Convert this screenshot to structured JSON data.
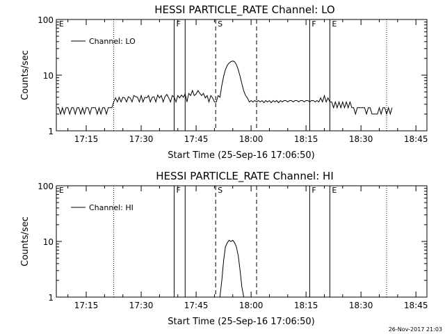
{
  "footer": {
    "timestamp": "26-Nov-2017 21:03"
  },
  "chart_data": [
    {
      "type": "line",
      "title": "HESSI PARTICLE_RATE Channel: LO",
      "xlabel": "Start Time (25-Sep-16 17:06:50)",
      "ylabel": "Counts/sec",
      "y_scale": "log",
      "ylim": [
        1,
        100
      ],
      "yticks": [
        1,
        10,
        100
      ],
      "ytick_labels": [
        "1",
        "10",
        "100"
      ],
      "xlim": [
        "17:06:50",
        "18:48:00"
      ],
      "xticks": [
        "17:15",
        "17:30",
        "17:45",
        "18:00",
        "18:15",
        "18:30",
        "18:45"
      ],
      "legend": {
        "position": "top-left",
        "entries": [
          "Channel: LO"
        ]
      },
      "grid": false,
      "markers": [
        {
          "time": "17:07",
          "style": "none",
          "label": "E"
        },
        {
          "time": "17:22:30",
          "style": "dotted",
          "label": ""
        },
        {
          "time": "17:39",
          "style": "solid",
          "label": "F"
        },
        {
          "time": "17:42",
          "style": "solid",
          "label": ""
        },
        {
          "time": "17:50:20",
          "style": "dashed",
          "label": "S"
        },
        {
          "time": "18:01:30",
          "style": "dashed",
          "label": ""
        },
        {
          "time": "18:16",
          "style": "solid",
          "label": "F"
        },
        {
          "time": "18:21:30",
          "style": "solid",
          "label": "E"
        },
        {
          "time": "18:37",
          "style": "dotted",
          "label": ""
        }
      ],
      "series": [
        {
          "name": "Channel: LO",
          "points": [
            [
              "17:07",
              2.6
            ],
            [
              "17:07:30",
              2.6
            ],
            [
              "17:08",
              2.0
            ],
            [
              "17:08:30",
              2.6
            ],
            [
              "17:09",
              2.0
            ],
            [
              "17:09:30",
              2.6
            ],
            [
              "17:10",
              2.6
            ],
            [
              "17:10:30",
              2.0
            ],
            [
              "17:11",
              2.6
            ],
            [
              "17:11:30",
              2.6
            ],
            [
              "17:12",
              2.0
            ],
            [
              "17:12:30",
              2.6
            ],
            [
              "17:13",
              2.6
            ],
            [
              "17:13:30",
              2.0
            ],
            [
              "17:14",
              2.6
            ],
            [
              "17:14:30",
              2.0
            ],
            [
              "17:15",
              2.6
            ],
            [
              "17:15:30",
              2.6
            ],
            [
              "17:16",
              2.0
            ],
            [
              "17:16:30",
              2.6
            ],
            [
              "17:17",
              2.6
            ],
            [
              "17:17:30",
              2.6
            ],
            [
              "17:18",
              2.0
            ],
            [
              "17:18:30",
              2.6
            ],
            [
              "17:19",
              2.0
            ],
            [
              "17:19:30",
              2.6
            ],
            [
              "17:20",
              2.6
            ],
            [
              "17:20:30",
              2.0
            ],
            [
              "17:21",
              2.6
            ],
            [
              "17:21:30",
              2.6
            ],
            [
              "17:22",
              2.6
            ],
            [
              "17:22:30",
              3.3
            ],
            [
              "17:23",
              3.9
            ],
            [
              "17:23:30",
              3.3
            ],
            [
              "17:24",
              4.0
            ],
            [
              "17:24:30",
              3.3
            ],
            [
              "17:25",
              4.0
            ],
            [
              "17:25:30",
              3.9
            ],
            [
              "17:26",
              3.3
            ],
            [
              "17:26:30",
              4.1
            ],
            [
              "17:27",
              3.9
            ],
            [
              "17:27:30",
              3.3
            ],
            [
              "17:28",
              4.3
            ],
            [
              "17:28:30",
              4.1
            ],
            [
              "17:29",
              4.0
            ],
            [
              "17:29:30",
              3.3
            ],
            [
              "17:30",
              4.3
            ],
            [
              "17:30:30",
              3.3
            ],
            [
              "17:31",
              4.0
            ],
            [
              "17:31:30",
              3.9
            ],
            [
              "17:32",
              4.3
            ],
            [
              "17:32:30",
              3.3
            ],
            [
              "17:33",
              4.0
            ],
            [
              "17:33:30",
              4.1
            ],
            [
              "17:34",
              3.3
            ],
            [
              "17:34:30",
              4.4
            ],
            [
              "17:35",
              3.9
            ],
            [
              "17:35:30",
              4.3
            ],
            [
              "17:36",
              3.3
            ],
            [
              "17:36:30",
              4.1
            ],
            [
              "17:37",
              4.5
            ],
            [
              "17:37:30",
              3.9
            ],
            [
              "17:38",
              3.3
            ],
            [
              "17:38:30",
              4.3
            ],
            [
              "17:39",
              4.0
            ],
            [
              "17:39:30",
              3.3
            ],
            [
              "17:40",
              4.3
            ],
            [
              "17:40:30",
              3.9
            ],
            [
              "17:41",
              4.4
            ],
            [
              "17:41:30",
              4.0
            ],
            [
              "17:42",
              4.6
            ],
            [
              "17:42:30",
              3.3
            ],
            [
              "17:43",
              4.7
            ],
            [
              "17:43:30",
              4.3
            ],
            [
              "17:44",
              5.3
            ],
            [
              "17:44:30",
              4.3
            ],
            [
              "17:45",
              4.6
            ],
            [
              "17:45:30",
              5.3
            ],
            [
              "17:46",
              4.7
            ],
            [
              "17:46:30",
              4.3
            ],
            [
              "17:47",
              4.7
            ],
            [
              "17:47:30",
              3.9
            ],
            [
              "17:48",
              4.3
            ],
            [
              "17:48:30",
              3.3
            ],
            [
              "17:49",
              4.3
            ],
            [
              "17:49:30",
              3.9
            ],
            [
              "17:50",
              3.3
            ],
            [
              "17:50:30",
              3.3
            ],
            [
              "17:51",
              4.3
            ],
            [
              "17:51:30",
              4.0
            ],
            [
              "17:52",
              6.5
            ],
            [
              "17:52:30",
              9.5
            ],
            [
              "17:53",
              12.5
            ],
            [
              "17:53:30",
              15.0
            ],
            [
              "17:54",
              16.5
            ],
            [
              "17:54:30",
              17.5
            ],
            [
              "17:55",
              18.0
            ],
            [
              "17:55:30",
              17.5
            ],
            [
              "17:56",
              15.5
            ],
            [
              "17:56:30",
              12.5
            ],
            [
              "17:57",
              9.5
            ],
            [
              "17:57:30",
              7.0
            ],
            [
              "17:58",
              5.2
            ],
            [
              "17:58:30",
              4.3
            ],
            [
              "17:59",
              3.9
            ],
            [
              "17:59:30",
              3.3
            ],
            [
              "18:00",
              3.5
            ],
            [
              "18:00:30",
              3.3
            ],
            [
              "18:01",
              3.5
            ],
            [
              "18:01:30",
              3.3
            ],
            [
              "18:02",
              3.5
            ],
            [
              "18:02:30",
              3.3
            ],
            [
              "18:03",
              3.5
            ],
            [
              "18:03:30",
              3.2
            ],
            [
              "18:04",
              3.5
            ],
            [
              "18:04:30",
              3.3
            ],
            [
              "18:05",
              3.5
            ],
            [
              "18:05:30",
              3.2
            ],
            [
              "18:06",
              3.5
            ],
            [
              "18:06:30",
              3.3
            ],
            [
              "18:07",
              3.5
            ],
            [
              "18:07:30",
              3.2
            ],
            [
              "18:08",
              3.5
            ],
            [
              "18:08:30",
              3.3
            ],
            [
              "18:09",
              3.5
            ],
            [
              "18:09:30",
              3.5
            ],
            [
              "18:10",
              3.3
            ],
            [
              "18:10:30",
              3.5
            ],
            [
              "18:11",
              3.5
            ],
            [
              "18:11:30",
              3.3
            ],
            [
              "18:12",
              3.5
            ],
            [
              "18:12:30",
              3.5
            ],
            [
              "18:13",
              3.3
            ],
            [
              "18:13:30",
              3.5
            ],
            [
              "18:14",
              3.5
            ],
            [
              "18:14:30",
              3.3
            ],
            [
              "18:15",
              3.5
            ],
            [
              "18:15:30",
              3.5
            ],
            [
              "18:16",
              3.3
            ],
            [
              "18:16:30",
              3.5
            ],
            [
              "18:17",
              3.5
            ],
            [
              "18:17:30",
              3.3
            ],
            [
              "18:18",
              3.5
            ],
            [
              "18:18:30",
              3.3
            ],
            [
              "18:19",
              3.9
            ],
            [
              "18:19:30",
              3.3
            ],
            [
              "18:20",
              4.3
            ],
            [
              "18:20:30",
              3.3
            ],
            [
              "18:21",
              3.9
            ],
            [
              "18:21:30",
              3.3
            ],
            [
              "18:22",
              3.3
            ],
            [
              "18:22:30",
              2.6
            ],
            [
              "18:23",
              3.3
            ],
            [
              "18:23:30",
              2.6
            ],
            [
              "18:24",
              3.3
            ],
            [
              "18:24:30",
              2.6
            ],
            [
              "18:25",
              3.3
            ],
            [
              "18:25:30",
              2.6
            ],
            [
              "18:26",
              3.3
            ],
            [
              "18:26:30",
              2.6
            ],
            [
              "18:27",
              3.3
            ],
            [
              "18:27:30",
              2.6
            ],
            [
              "18:28",
              2.6
            ],
            [
              "18:28:30",
              2.0
            ],
            [
              "18:29",
              2.6
            ],
            [
              "18:29:30",
              2.6
            ],
            [
              "18:30",
              2.6
            ],
            [
              "18:30:30",
              2.6
            ],
            [
              "18:31",
              2.6
            ],
            [
              "18:31:30",
              2.0
            ],
            [
              "18:32",
              2.6
            ],
            [
              "18:32:30",
              2.6
            ],
            [
              "18:33",
              2.0
            ],
            [
              "18:33:30",
              2.0
            ],
            [
              "18:34",
              2.0
            ],
            [
              "18:34:30",
              2.0
            ],
            [
              "18:35",
              2.6
            ],
            [
              "18:35:30",
              2.0
            ],
            [
              "18:36",
              2.6
            ],
            [
              "18:36:30",
              2.6
            ],
            [
              "18:37",
              2.0
            ],
            [
              "18:37:30",
              2.6
            ],
            [
              "18:38",
              2.0
            ],
            [
              "18:38:30",
              2.6
            ]
          ]
        }
      ]
    },
    {
      "type": "line",
      "title": "HESSI PARTICLE_RATE Channel: HI",
      "xlabel": "Start Time (25-Sep-16 17:06:50)",
      "ylabel": "Counts/sec",
      "y_scale": "log",
      "ylim": [
        1,
        100
      ],
      "yticks": [
        1,
        10,
        100
      ],
      "ytick_labels": [
        "1",
        "10",
        "100"
      ],
      "xlim": [
        "17:06:50",
        "18:48:00"
      ],
      "xticks": [
        "17:15",
        "17:30",
        "17:45",
        "18:00",
        "18:15",
        "18:30",
        "18:45"
      ],
      "legend": {
        "position": "top-left",
        "entries": [
          "Channel: HI"
        ]
      },
      "grid": false,
      "markers": [
        {
          "time": "17:07",
          "style": "none",
          "label": "E"
        },
        {
          "time": "17:22:30",
          "style": "dotted",
          "label": ""
        },
        {
          "time": "17:39",
          "style": "solid",
          "label": "F"
        },
        {
          "time": "17:42",
          "style": "solid",
          "label": ""
        },
        {
          "time": "17:50:20",
          "style": "dashed",
          "label": "S"
        },
        {
          "time": "18:01:30",
          "style": "dashed",
          "label": ""
        },
        {
          "time": "18:16",
          "style": "solid",
          "label": "F"
        },
        {
          "time": "18:21:30",
          "style": "solid",
          "label": "E"
        },
        {
          "time": "18:37",
          "style": "dotted",
          "label": ""
        }
      ],
      "series": [
        {
          "name": "Channel: HI",
          "points": [
            [
              "17:51:30",
              1.0
            ],
            [
              "17:52",
              2.0
            ],
            [
              "17:52:30",
              4.5
            ],
            [
              "17:53",
              8.0
            ],
            [
              "17:53:30",
              9.5
            ],
            [
              "17:54",
              10.5
            ],
            [
              "17:54:30",
              10.0
            ],
            [
              "17:55",
              10.5
            ],
            [
              "17:55:30",
              9.5
            ],
            [
              "17:56",
              8.0
            ],
            [
              "17:56:30",
              5.5
            ],
            [
              "17:57",
              3.0
            ],
            [
              "17:57:30",
              1.5
            ],
            [
              "17:58",
              1.0
            ]
          ]
        }
      ]
    }
  ]
}
